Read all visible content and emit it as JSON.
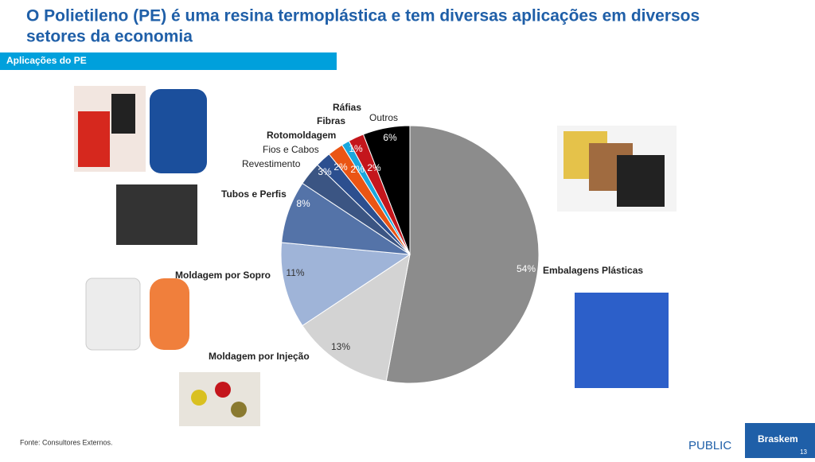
{
  "header": {
    "title_line1": "O Polietileno (PE) é uma resina termoplástica e tem diversas aplicações em diversos",
    "title_line2": "setores da economia",
    "section": "Aplicações do PE"
  },
  "footer": {
    "source": "Fonte: Consultores Externos.",
    "classification": "PUBLIC",
    "brand": "Braskem",
    "page": "13"
  },
  "chart_data": {
    "type": "pie",
    "categories": [
      "Embalagens Plásticas",
      "Moldagem por Injeção",
      "Moldagem por Sopro",
      "Tubos e Perfis",
      "Revestimento",
      "Fios e Cabos",
      "Rotomoldagem",
      "Fibras",
      "Ráfias",
      "Outros"
    ],
    "values": [
      54,
      13,
      11,
      8,
      3,
      2,
      2,
      1,
      2,
      6
    ],
    "value_labels": [
      "54%",
      "13%",
      "11%",
      "8%",
      "3%",
      "2%",
      "2%",
      "1%",
      "2%",
      "6%"
    ],
    "colors": [
      "#8c8c8c",
      "#d3d3d3",
      "#9fb4d8",
      "#5473a8",
      "#3b5583",
      "#2c4f8f",
      "#ea5514",
      "#1aa7dd",
      "#c4161c",
      "#000000"
    ]
  }
}
